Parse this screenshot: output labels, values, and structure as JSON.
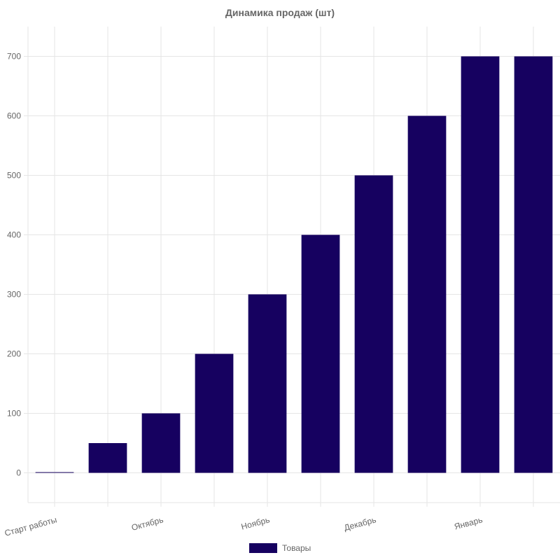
{
  "chart_data": {
    "type": "bar",
    "title": "Динамика продаж (шт)",
    "categories": [
      "Старт работы",
      "",
      "Октябрь",
      "",
      "Ноябрь",
      "",
      "Декабрь",
      "",
      "Январь",
      ""
    ],
    "series": [
      {
        "name": "Товары",
        "values": [
          0,
          50,
          100,
          200,
          300,
          400,
          500,
          600,
          700,
          700
        ],
        "color": "#160160"
      }
    ],
    "ylim": [
      -50,
      750
    ],
    "yticks": [
      0,
      100,
      200,
      300,
      400,
      500,
      600,
      700
    ],
    "grid": true,
    "legend": "bottom",
    "tick_color": "#666666"
  }
}
